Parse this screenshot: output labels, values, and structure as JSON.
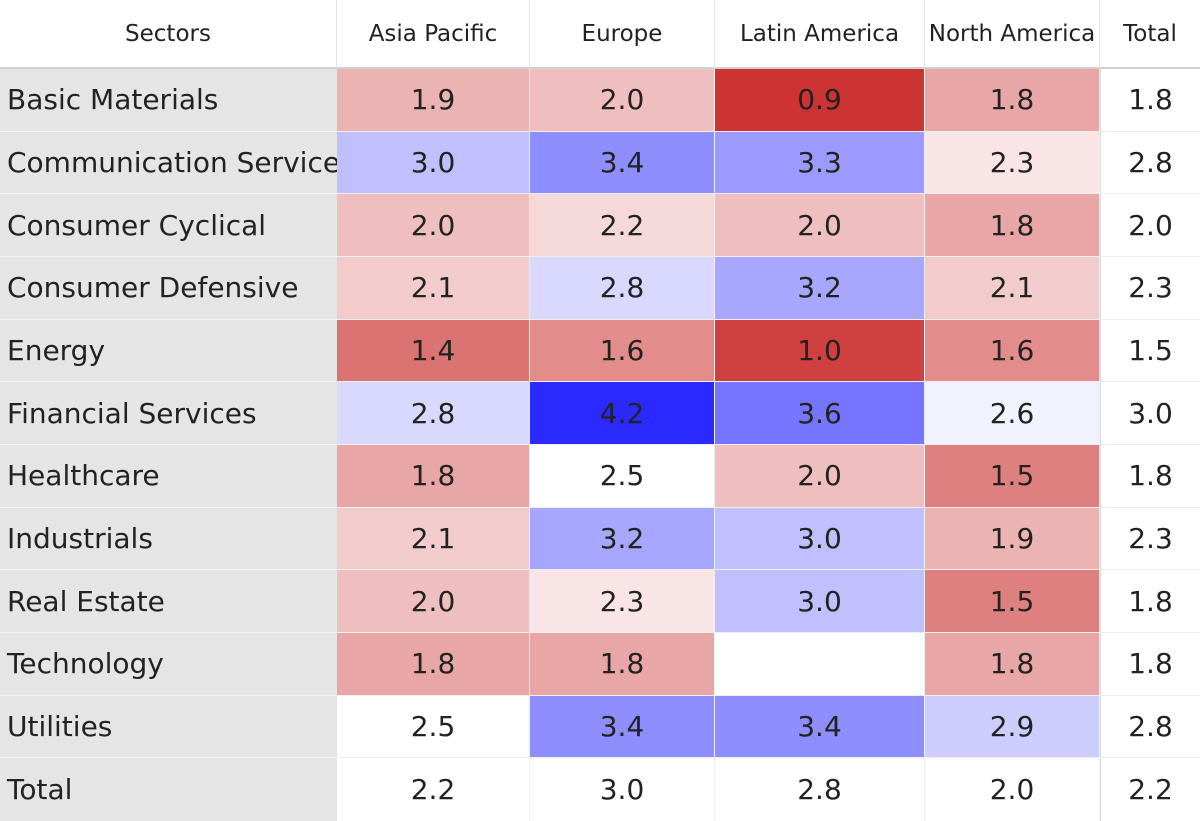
{
  "chart_data": {
    "type": "heatmap",
    "corner_label": "Sectors",
    "columns": [
      "Asia Pacific",
      "Europe",
      "Latin America",
      "North America"
    ],
    "total_label": "Total",
    "rows": [
      {
        "label": "Basic Materials",
        "values": [
          "1.9",
          "2.0",
          "0.9",
          "1.8"
        ],
        "total": "1.8"
      },
      {
        "label": "Communication Services",
        "values": [
          "3.0",
          "3.4",
          "3.3",
          "2.3"
        ],
        "total": "2.8"
      },
      {
        "label": "Consumer Cyclical",
        "values": [
          "2.0",
          "2.2",
          "2.0",
          "1.8"
        ],
        "total": "2.0"
      },
      {
        "label": "Consumer Defensive",
        "values": [
          "2.1",
          "2.8",
          "3.2",
          "2.1"
        ],
        "total": "2.3"
      },
      {
        "label": "Energy",
        "values": [
          "1.4",
          "1.6",
          "1.0",
          "1.6"
        ],
        "total": "1.5"
      },
      {
        "label": "Financial Services",
        "values": [
          "2.8",
          "4.2",
          "3.6",
          "2.6"
        ],
        "total": "3.0"
      },
      {
        "label": "Healthcare",
        "values": [
          "1.8",
          "2.5",
          "2.0",
          "1.5"
        ],
        "total": "1.8"
      },
      {
        "label": "Industrials",
        "values": [
          "2.1",
          "3.2",
          "3.0",
          "1.9"
        ],
        "total": "2.3"
      },
      {
        "label": "Real Estate",
        "values": [
          "2.0",
          "2.3",
          "3.0",
          "1.5"
        ],
        "total": "1.8"
      },
      {
        "label": "Technology",
        "values": [
          "1.8",
          "1.8",
          "",
          "1.8"
        ],
        "total": "1.8"
      },
      {
        "label": "Utilities",
        "values": [
          "2.5",
          "3.4",
          "3.4",
          "2.9"
        ],
        "total": "2.8"
      }
    ],
    "column_totals": [
      "2.2",
      "3.0",
      "2.8",
      "2.0"
    ],
    "grand_total": "2.2",
    "color_scale": {
      "low_color": "#cc3333",
      "mid_color": "#ffffff",
      "high_color": "#2a2aff",
      "low_value": 0.9,
      "mid_value": 2.5,
      "high_value": 4.2
    }
  }
}
